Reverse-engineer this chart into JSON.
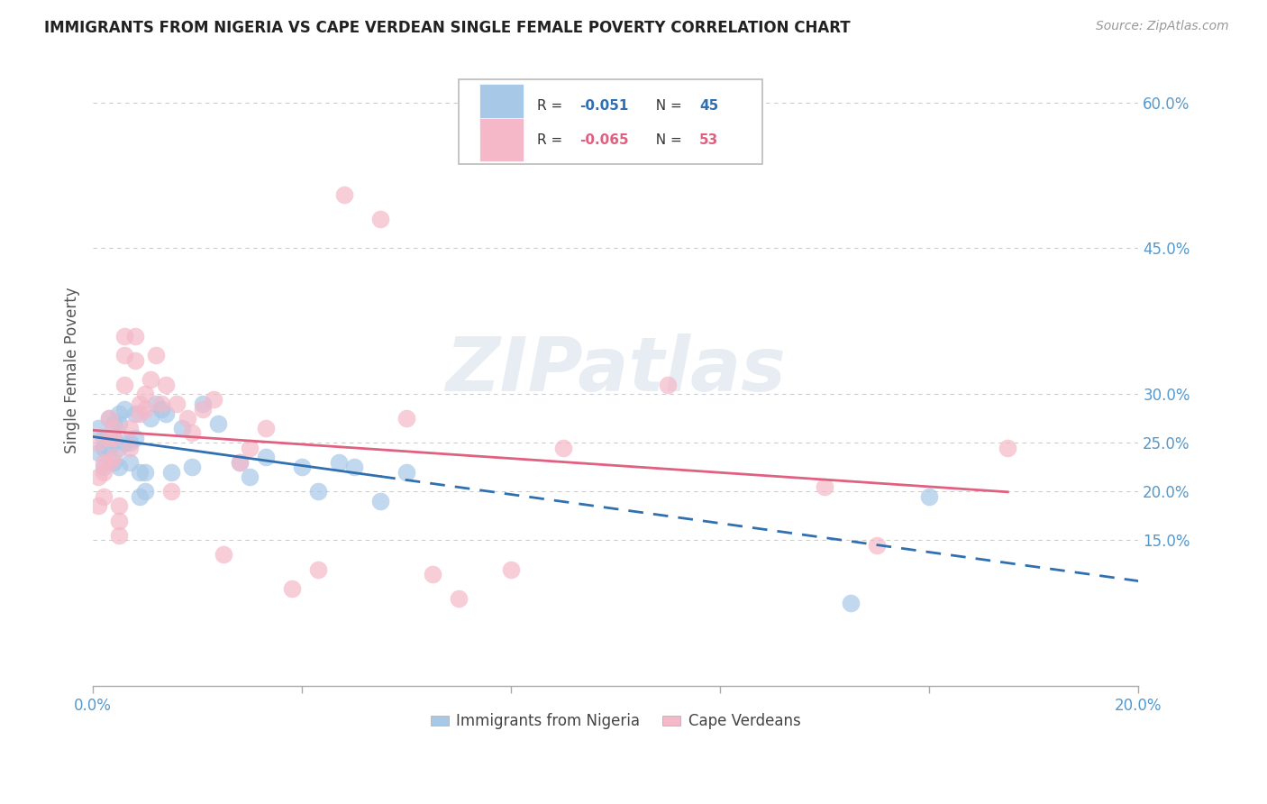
{
  "title": "IMMIGRANTS FROM NIGERIA VS CAPE VERDEAN SINGLE FEMALE POVERTY CORRELATION CHART",
  "source": "Source: ZipAtlas.com",
  "ylabel": "Single Female Poverty",
  "legend_label1": "Immigrants from Nigeria",
  "legend_label2": "Cape Verdeans",
  "r1": "-0.051",
  "n1": "45",
  "r2": "-0.065",
  "n2": "53",
  "watermark": "ZIPatlas",
  "blue_scatter_color": "#a8c8e8",
  "pink_scatter_color": "#f4b8c8",
  "blue_line_color": "#3070b0",
  "pink_line_color": "#e06080",
  "axis_label_color": "#5599cc",
  "title_color": "#222222",
  "grid_color": "#cccccc",
  "xlim": [
    0.0,
    0.2
  ],
  "ylim": [
    0.0,
    0.65
  ],
  "ytick_vals": [
    0.15,
    0.2,
    0.25,
    0.3,
    0.45,
    0.6
  ],
  "ytick_labels": [
    "15.0%",
    "20.0%",
    "25.0%",
    "30.0%",
    "45.0%",
    "60.0%"
  ],
  "xtick_vals": [
    0.0,
    0.04,
    0.08,
    0.12,
    0.16,
    0.2
  ],
  "xtick_labels_visible": [
    "0.0%",
    "",
    "",
    "",
    "",
    "20.0%"
  ],
  "nigeria_x": [
    0.001,
    0.001,
    0.002,
    0.002,
    0.002,
    0.003,
    0.003,
    0.003,
    0.004,
    0.004,
    0.004,
    0.005,
    0.005,
    0.005,
    0.005,
    0.006,
    0.006,
    0.007,
    0.007,
    0.008,
    0.008,
    0.009,
    0.009,
    0.01,
    0.01,
    0.011,
    0.012,
    0.013,
    0.014,
    0.015,
    0.017,
    0.019,
    0.021,
    0.024,
    0.028,
    0.03,
    0.033,
    0.04,
    0.043,
    0.047,
    0.05,
    0.055,
    0.06,
    0.145,
    0.16
  ],
  "nigeria_y": [
    0.265,
    0.24,
    0.255,
    0.245,
    0.225,
    0.275,
    0.255,
    0.245,
    0.27,
    0.255,
    0.23,
    0.28,
    0.27,
    0.245,
    0.225,
    0.285,
    0.25,
    0.25,
    0.23,
    0.28,
    0.255,
    0.195,
    0.22,
    0.22,
    0.2,
    0.275,
    0.29,
    0.285,
    0.28,
    0.22,
    0.265,
    0.225,
    0.29,
    0.27,
    0.23,
    0.215,
    0.235,
    0.225,
    0.2,
    0.23,
    0.225,
    0.19,
    0.22,
    0.085,
    0.195
  ],
  "capeverde_x": [
    0.001,
    0.001,
    0.001,
    0.002,
    0.002,
    0.002,
    0.003,
    0.003,
    0.003,
    0.004,
    0.004,
    0.004,
    0.005,
    0.005,
    0.005,
    0.006,
    0.006,
    0.006,
    0.007,
    0.007,
    0.008,
    0.008,
    0.009,
    0.009,
    0.01,
    0.01,
    0.011,
    0.012,
    0.013,
    0.014,
    0.015,
    0.016,
    0.018,
    0.019,
    0.021,
    0.023,
    0.025,
    0.028,
    0.03,
    0.033,
    0.038,
    0.043,
    0.048,
    0.055,
    0.06,
    0.065,
    0.07,
    0.08,
    0.09,
    0.11,
    0.14,
    0.15,
    0.175
  ],
  "capeverde_y": [
    0.25,
    0.215,
    0.185,
    0.23,
    0.22,
    0.195,
    0.275,
    0.255,
    0.23,
    0.265,
    0.255,
    0.235,
    0.185,
    0.17,
    0.155,
    0.36,
    0.34,
    0.31,
    0.265,
    0.245,
    0.36,
    0.335,
    0.29,
    0.28,
    0.3,
    0.285,
    0.315,
    0.34,
    0.29,
    0.31,
    0.2,
    0.29,
    0.275,
    0.26,
    0.285,
    0.295,
    0.135,
    0.23,
    0.245,
    0.265,
    0.1,
    0.12,
    0.505,
    0.48,
    0.275,
    0.115,
    0.09,
    0.12,
    0.245,
    0.31,
    0.205,
    0.145,
    0.245
  ],
  "nigeria_line_solid_end": 0.055,
  "nigeria_line_dash_end": 0.2,
  "capeverde_line_start": 0.001,
  "capeverde_line_end": 0.175
}
